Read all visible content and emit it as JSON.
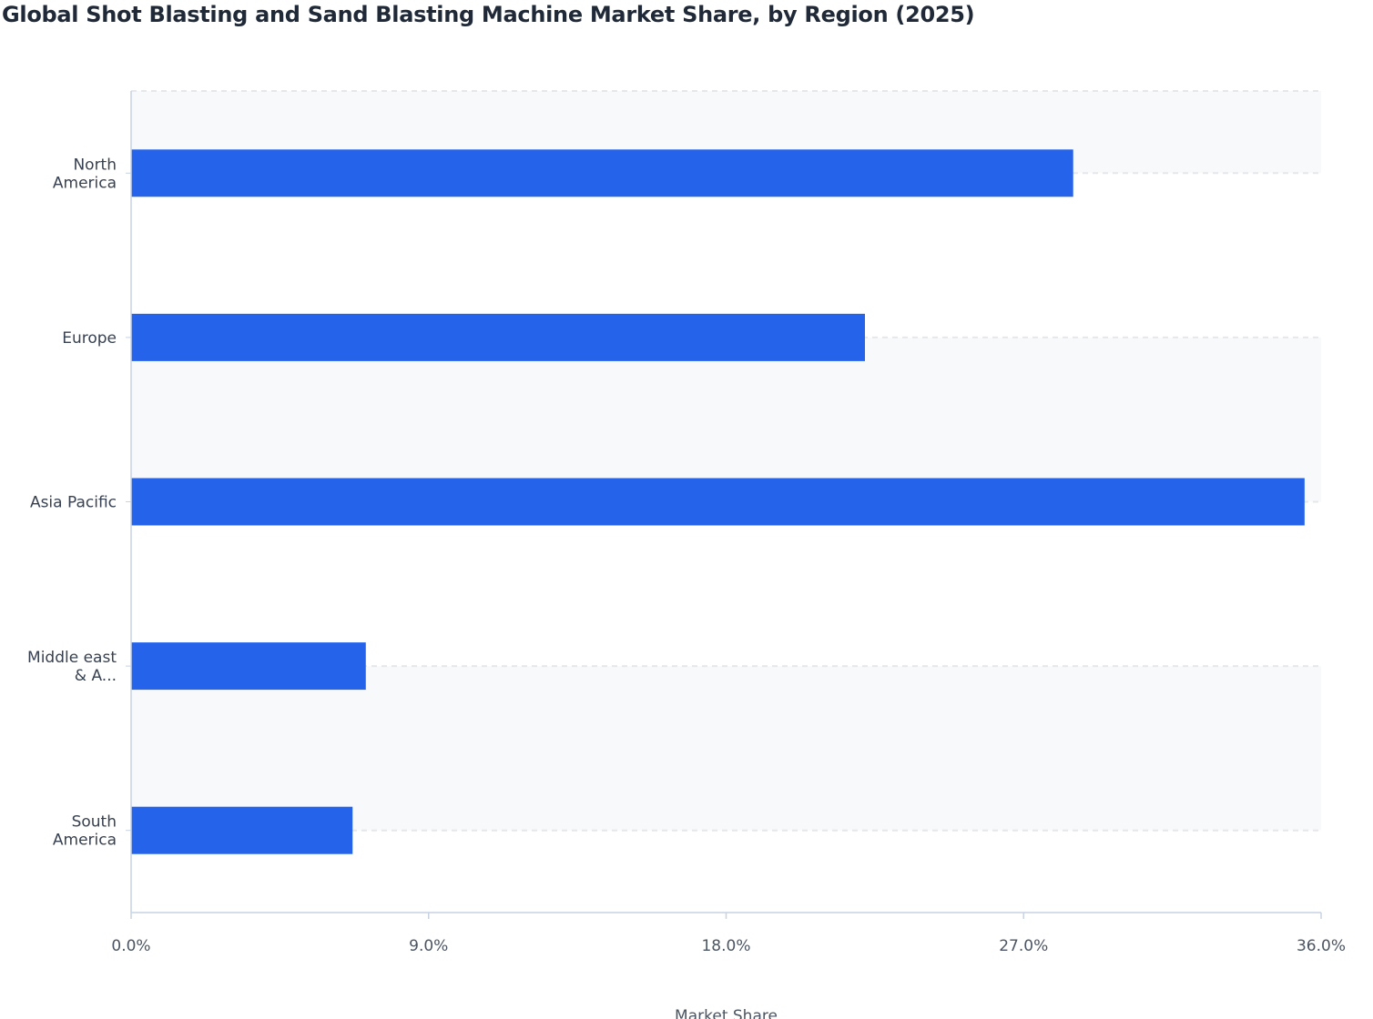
{
  "chart_data": {
    "type": "bar",
    "orientation": "horizontal",
    "title": "Global Shot Blasting and Sand Blasting Machine Market Share, by Region (2025)",
    "xlabel": "Market Share",
    "ylabel": "",
    "categories": [
      [
        "North",
        "America"
      ],
      [
        "Europe"
      ],
      [
        "Asia Pacific"
      ],
      [
        "Middle east",
        "& A..."
      ],
      [
        "South",
        "America"
      ]
    ],
    "values": [
      28.5,
      22.2,
      35.5,
      7.1,
      6.7
    ],
    "xlim": [
      0,
      36
    ],
    "xticks": [
      "0.0%",
      "9.0%",
      "18.0%",
      "27.0%",
      "36.0%"
    ],
    "grid": true,
    "bar_color": "#2563EB"
  }
}
